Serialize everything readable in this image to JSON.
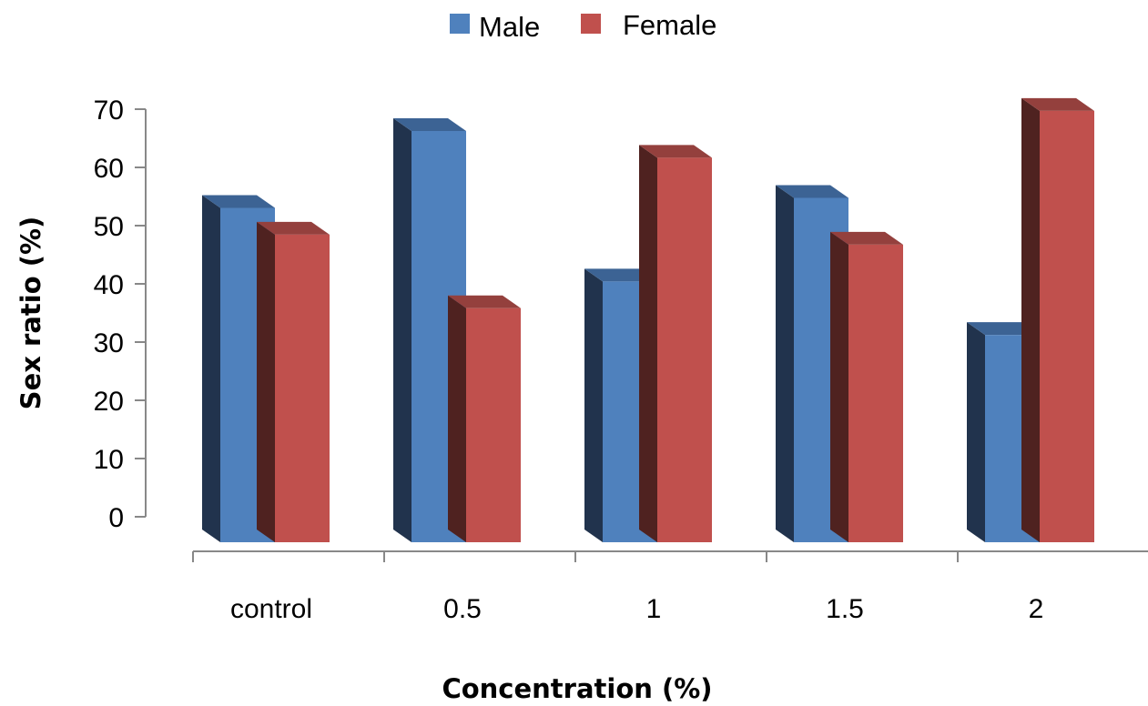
{
  "chart_data": {
    "type": "bar",
    "categories": [
      "control",
      "0.5",
      "1",
      "1.5",
      "2"
    ],
    "series": [
      {
        "name": "Male",
        "values": [
          50,
          61.5,
          39,
          51.5,
          31
        ]
      },
      {
        "name": "Female",
        "values": [
          46,
          35,
          57.5,
          44.5,
          64.5
        ]
      }
    ],
    "xlabel": "Concentration (%)",
    "ylabel": "Sex ratio (%)",
    "ylim": [
      0,
      70
    ],
    "yticks": [
      "0",
      "10",
      "20",
      "30",
      "40",
      "50",
      "60",
      "70"
    ],
    "grid": false,
    "legend": "top-center",
    "style": "3d-clustered-column",
    "colors": {
      "Male": {
        "front": "#4f81bd",
        "side": "#21334d",
        "top": "#3c6394"
      },
      "Female": {
        "front": "#c0504d",
        "side": "#4f2220",
        "top": "#94403d"
      }
    }
  }
}
